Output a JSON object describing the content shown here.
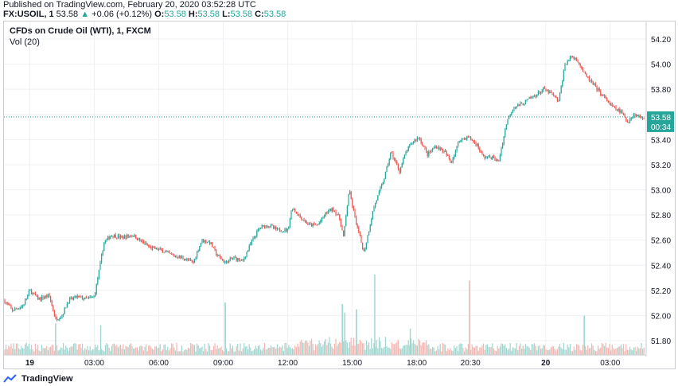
{
  "header": {
    "published": "Published on TradingView.com, February 20, 2020 03:52:28 UTC",
    "symbol": "FX:USOIL, 1",
    "last": "53.58",
    "change": "+0.06 (+0.12%)",
    "o_label": "O:",
    "o_value": "53.58",
    "h_label": "H:",
    "h_value": "53.58",
    "l_label": "L:",
    "l_value": "53.58",
    "c_label": "C:",
    "c_value": "53.58"
  },
  "legend": {
    "title": "CFDs on Crude Oil (WTI), 1, FXCM",
    "volume": "Vol (20)"
  },
  "price_tag": {
    "value": "53.58",
    "countdown": "00:34"
  },
  "footer": {
    "brand": "TradingView"
  },
  "colors": {
    "up": "#26a69a",
    "down": "#ef5350",
    "vol_up": "#9fd6cf",
    "vol_down": "#f4b6b1",
    "grid": "#eef0f3",
    "axis_text": "#131722",
    "price_line": "#26a69a"
  },
  "chart_data": {
    "type": "candlestick",
    "symbol": "FX:USOIL",
    "interval": "1",
    "y_ticks": [
      51.8,
      52.0,
      52.2,
      52.4,
      52.6,
      52.8,
      53.0,
      53.2,
      53.4,
      53.6,
      53.8,
      54.0,
      54.2
    ],
    "y_tick_labels": [
      "51.80",
      "52.00",
      "52.20",
      "52.40",
      "52.60",
      "52.80",
      "53.00",
      "53.20",
      "53.40",
      "53.60",
      "53.80",
      "54.00",
      "54.20"
    ],
    "ylim": [
      51.67,
      54.27
    ],
    "x_ticks": [
      "19",
      "03:00",
      "06:00",
      "09:00",
      "12:00",
      "15:00",
      "18:00",
      "20:30",
      "20",
      "03:00"
    ],
    "x_tick_hours": [
      0,
      3,
      6,
      9,
      12,
      15,
      18,
      20.5,
      24,
      27
    ],
    "x_range_hours": [
      -1.2,
      28.6
    ],
    "close_path": [
      [
        -1.2,
        52.12
      ],
      [
        -0.8,
        52.04
      ],
      [
        -0.3,
        52.08
      ],
      [
        0.0,
        52.2
      ],
      [
        0.4,
        52.13
      ],
      [
        0.9,
        52.16
      ],
      [
        1.2,
        51.97
      ],
      [
        1.5,
        52.0
      ],
      [
        1.8,
        52.12
      ],
      [
        2.2,
        52.15
      ],
      [
        2.6,
        52.13
      ],
      [
        3.0,
        52.15
      ],
      [
        3.25,
        52.38
      ],
      [
        3.45,
        52.58
      ],
      [
        3.8,
        52.64
      ],
      [
        4.3,
        52.62
      ],
      [
        4.8,
        52.64
      ],
      [
        5.1,
        52.6
      ],
      [
        5.6,
        52.54
      ],
      [
        6.1,
        52.52
      ],
      [
        6.6,
        52.48
      ],
      [
        7.1,
        52.46
      ],
      [
        7.6,
        52.42
      ],
      [
        8.0,
        52.6
      ],
      [
        8.4,
        52.58
      ],
      [
        8.7,
        52.48
      ],
      [
        9.1,
        52.42
      ],
      [
        9.5,
        52.46
      ],
      [
        9.9,
        52.43
      ],
      [
        10.3,
        52.58
      ],
      [
        10.7,
        52.7
      ],
      [
        11.1,
        52.72
      ],
      [
        11.5,
        52.68
      ],
      [
        12.0,
        52.68
      ],
      [
        12.2,
        52.86
      ],
      [
        12.6,
        52.78
      ],
      [
        13.0,
        52.72
      ],
      [
        13.4,
        52.72
      ],
      [
        13.8,
        52.82
      ],
      [
        14.1,
        52.85
      ],
      [
        14.4,
        52.78
      ],
      [
        14.6,
        52.62
      ],
      [
        14.85,
        53.0
      ],
      [
        15.2,
        52.72
      ],
      [
        15.55,
        52.5
      ],
      [
        15.8,
        52.7
      ],
      [
        16.0,
        52.86
      ],
      [
        16.3,
        53.0
      ],
      [
        16.5,
        53.1
      ],
      [
        16.8,
        53.3
      ],
      [
        17.2,
        53.15
      ],
      [
        17.5,
        53.3
      ],
      [
        17.8,
        53.38
      ],
      [
        18.1,
        53.42
      ],
      [
        18.5,
        53.28
      ],
      [
        18.9,
        53.35
      ],
      [
        19.3,
        53.3
      ],
      [
        19.6,
        53.22
      ],
      [
        20.0,
        53.4
      ],
      [
        20.4,
        53.42
      ],
      [
        20.8,
        53.36
      ],
      [
        21.1,
        53.26
      ],
      [
        21.5,
        53.26
      ],
      [
        21.8,
        53.22
      ],
      [
        22.0,
        53.38
      ],
      [
        22.2,
        53.55
      ],
      [
        22.5,
        53.66
      ],
      [
        22.9,
        53.68
      ],
      [
        23.2,
        53.72
      ],
      [
        23.6,
        53.76
      ],
      [
        23.9,
        53.8
      ],
      [
        24.3,
        53.76
      ],
      [
        24.6,
        53.7
      ],
      [
        24.9,
        54.0
      ],
      [
        25.2,
        54.06
      ],
      [
        25.5,
        54.03
      ],
      [
        25.8,
        53.92
      ],
      [
        26.2,
        53.84
      ],
      [
        26.5,
        53.78
      ],
      [
        26.8,
        53.72
      ],
      [
        27.1,
        53.66
      ],
      [
        27.5,
        53.62
      ],
      [
        27.8,
        53.54
      ],
      [
        28.1,
        53.6
      ],
      [
        28.4,
        53.58
      ]
    ],
    "volume_spikes": [
      {
        "x": 16.05,
        "v": 0.92
      },
      {
        "x": 20.45,
        "v": 0.85
      },
      {
        "x": 9.1,
        "v": 0.6
      },
      {
        "x": 14.55,
        "v": 0.58
      },
      {
        "x": 15.2,
        "v": 0.52
      },
      {
        "x": 25.8,
        "v": 0.45
      },
      {
        "x": 14.65,
        "v": 0.48
      },
      {
        "x": 1.2,
        "v": 0.36
      },
      {
        "x": 3.3,
        "v": 0.34
      },
      {
        "x": 17.7,
        "v": 0.3
      }
    ],
    "last_price": 53.58
  }
}
